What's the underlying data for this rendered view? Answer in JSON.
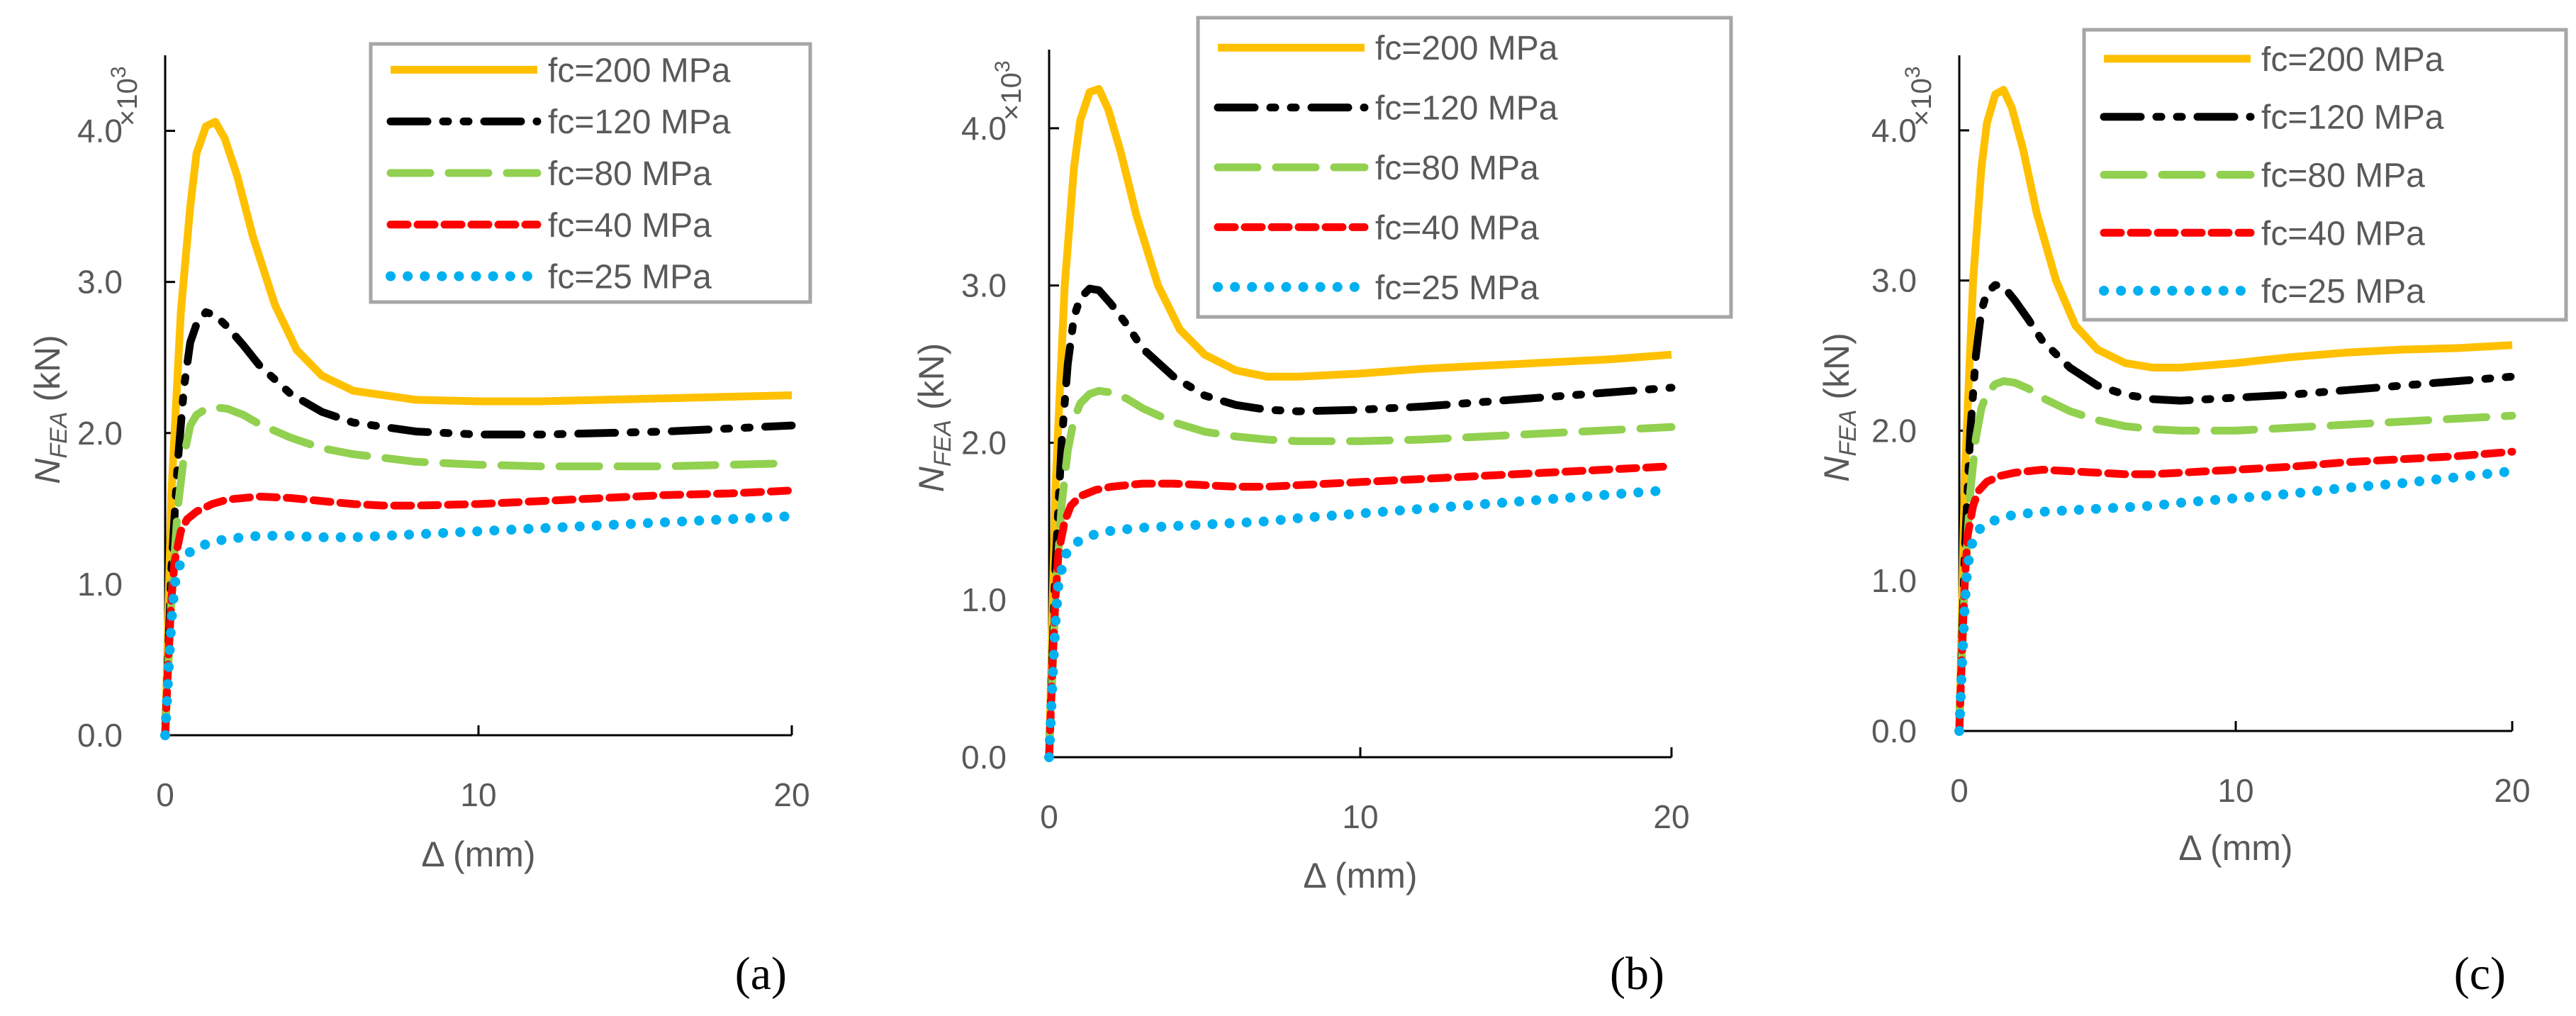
{
  "chart_data": [
    {
      "type": "line",
      "panel_label": "(a)",
      "xlabel": "Δ (mm)",
      "ylabel": "N_FEA (kN)",
      "ylabel_main": "N",
      "ylabel_sub": "FEA",
      "ylabel_unit": " (kN)",
      "y_scale": "×10",
      "y_scale_exp": "3",
      "xlim": [
        0,
        20
      ],
      "ylim": [
        0,
        4.5
      ],
      "x_ticks": [
        "0",
        "10",
        "20"
      ],
      "y_ticks": [
        "0.0",
        "1.0",
        "2.0",
        "3.0",
        "4.0"
      ],
      "legend_position": "top-right",
      "series": [
        {
          "name": "fc=200  MPa",
          "color": "#FFC000",
          "style": "solid",
          "x": [
            0,
            0.2,
            0.5,
            0.8,
            1.0,
            1.3,
            1.6,
            1.9,
            2.3,
            2.8,
            3.5,
            4.2,
            5,
            6,
            8,
            10,
            12,
            14,
            16,
            18,
            20
          ],
          "y": [
            0,
            1.6,
            2.8,
            3.5,
            3.85,
            4.03,
            4.06,
            3.95,
            3.7,
            3.3,
            2.85,
            2.55,
            2.38,
            2.28,
            2.22,
            2.21,
            2.21,
            2.22,
            2.23,
            2.24,
            2.25
          ]
        },
        {
          "name": "fc=120  MPa",
          "color": "#000000",
          "style": "dashdotdot",
          "x": [
            0,
            0.2,
            0.4,
            0.6,
            0.8,
            1.0,
            1.3,
            1.6,
            2.0,
            2.5,
            3,
            4,
            5,
            6,
            8,
            10,
            12,
            14,
            16,
            18,
            20
          ],
          "y": [
            0,
            1.1,
            1.8,
            2.3,
            2.6,
            2.72,
            2.8,
            2.78,
            2.7,
            2.58,
            2.45,
            2.26,
            2.14,
            2.07,
            2.01,
            1.99,
            1.99,
            2.0,
            2.01,
            2.03,
            2.05
          ]
        },
        {
          "name": "fc=80  MPa",
          "color": "#92D050",
          "style": "longdash",
          "x": [
            0,
            0.2,
            0.4,
            0.6,
            0.8,
            1.0,
            1.3,
            1.6,
            2.0,
            2.5,
            3,
            4,
            5,
            6,
            8,
            10,
            12,
            14,
            16,
            18,
            20
          ],
          "y": [
            0,
            0.9,
            1.5,
            1.85,
            2.05,
            2.12,
            2.16,
            2.17,
            2.16,
            2.12,
            2.06,
            1.97,
            1.9,
            1.86,
            1.81,
            1.79,
            1.78,
            1.78,
            1.78,
            1.79,
            1.8
          ]
        },
        {
          "name": "fc=40  MPa",
          "color": "#FF0000",
          "style": "shortdash",
          "x": [
            0,
            0.1,
            0.2,
            0.3,
            0.5,
            0.7,
            1.0,
            1.5,
            2,
            3,
            4,
            5,
            6,
            7,
            8,
            10,
            12,
            14,
            16,
            18,
            20
          ],
          "y": [
            0,
            0.5,
            0.9,
            1.15,
            1.35,
            1.43,
            1.48,
            1.53,
            1.56,
            1.58,
            1.57,
            1.55,
            1.53,
            1.52,
            1.52,
            1.53,
            1.55,
            1.57,
            1.59,
            1.6,
            1.62
          ]
        },
        {
          "name": "fc=25 MPa",
          "color": "#00B0F0",
          "style": "dotted",
          "x": [
            0,
            0.1,
            0.2,
            0.3,
            0.5,
            0.7,
            1.0,
            1.5,
            2,
            3,
            4,
            5,
            6,
            7,
            8,
            10,
            12,
            14,
            16,
            18,
            20
          ],
          "y": [
            0,
            0.4,
            0.75,
            1.0,
            1.15,
            1.2,
            1.24,
            1.28,
            1.3,
            1.32,
            1.32,
            1.31,
            1.31,
            1.32,
            1.33,
            1.35,
            1.37,
            1.39,
            1.41,
            1.43,
            1.45
          ]
        }
      ]
    },
    {
      "type": "line",
      "panel_label": "(b)",
      "xlabel": "Δ (mm)",
      "ylabel": "N_FEA (kN)",
      "ylabel_main": "N",
      "ylabel_sub": "FEA",
      "ylabel_unit": " (kN)",
      "y_scale": "×10",
      "y_scale_exp": "3",
      "xlim": [
        0,
        20
      ],
      "ylim": [
        0,
        4.5
      ],
      "x_ticks": [
        "0",
        "10",
        "20"
      ],
      "y_ticks": [
        "0.0",
        "1.0",
        "2.0",
        "3.0",
        "4.0"
      ],
      "legend_position": "top-right",
      "series": [
        {
          "name": "fc=200  MPa",
          "color": "#FFC000",
          "style": "solid",
          "x": [
            0,
            0.2,
            0.5,
            0.8,
            1.0,
            1.3,
            1.6,
            1.9,
            2.3,
            2.8,
            3.5,
            4.2,
            5,
            6,
            7,
            8,
            10,
            12,
            14,
            16,
            18,
            20
          ],
          "y": [
            0,
            1.7,
            3.0,
            3.75,
            4.05,
            4.23,
            4.25,
            4.12,
            3.85,
            3.45,
            3.0,
            2.72,
            2.56,
            2.46,
            2.42,
            2.42,
            2.44,
            2.47,
            2.49,
            2.51,
            2.53,
            2.56
          ]
        },
        {
          "name": "fc=120  MPa",
          "color": "#000000",
          "style": "dashdotdot",
          "x": [
            0,
            0.2,
            0.4,
            0.6,
            0.8,
            1.0,
            1.3,
            1.6,
            2.0,
            2.5,
            3,
            4,
            5,
            6,
            7,
            8,
            10,
            12,
            14,
            16,
            18,
            20
          ],
          "y": [
            0,
            1.2,
            2.0,
            2.5,
            2.8,
            2.92,
            2.98,
            2.97,
            2.88,
            2.75,
            2.6,
            2.42,
            2.3,
            2.24,
            2.21,
            2.2,
            2.21,
            2.23,
            2.26,
            2.29,
            2.32,
            2.35
          ]
        },
        {
          "name": "fc=80  MPa",
          "color": "#92D050",
          "style": "longdash",
          "x": [
            0,
            0.2,
            0.4,
            0.6,
            0.8,
            1.0,
            1.3,
            1.6,
            2.0,
            2.5,
            3,
            4,
            5,
            6,
            7,
            8,
            10,
            12,
            14,
            16,
            18,
            20
          ],
          "y": [
            0,
            1.0,
            1.6,
            1.95,
            2.15,
            2.25,
            2.31,
            2.33,
            2.32,
            2.28,
            2.22,
            2.13,
            2.07,
            2.04,
            2.02,
            2.01,
            2.01,
            2.02,
            2.04,
            2.06,
            2.08,
            2.1
          ]
        },
        {
          "name": "fc=40  MPa",
          "color": "#FF0000",
          "style": "shortdash",
          "x": [
            0,
            0.1,
            0.2,
            0.3,
            0.5,
            0.7,
            1.0,
            1.5,
            2,
            3,
            4,
            5,
            6,
            7,
            8,
            10,
            12,
            14,
            16,
            18,
            20
          ],
          "y": [
            0,
            0.55,
            1.0,
            1.3,
            1.5,
            1.6,
            1.66,
            1.7,
            1.72,
            1.74,
            1.74,
            1.73,
            1.72,
            1.72,
            1.73,
            1.75,
            1.77,
            1.79,
            1.81,
            1.83,
            1.85
          ]
        },
        {
          "name": "fc=25 MPa",
          "color": "#00B0F0",
          "style": "dotted",
          "x": [
            0,
            0.1,
            0.2,
            0.3,
            0.5,
            0.7,
            1.0,
            1.5,
            2,
            3,
            4,
            5,
            6,
            7,
            8,
            10,
            12,
            14,
            16,
            18,
            20
          ],
          "y": [
            0,
            0.45,
            0.85,
            1.1,
            1.28,
            1.34,
            1.38,
            1.42,
            1.44,
            1.46,
            1.47,
            1.48,
            1.49,
            1.5,
            1.52,
            1.55,
            1.58,
            1.61,
            1.64,
            1.67,
            1.7
          ]
        }
      ]
    },
    {
      "type": "line",
      "panel_label": "(c)",
      "xlabel": "Δ (mm)",
      "ylabel": "N_FEA (kN)",
      "ylabel_main": "N",
      "ylabel_sub": "FEA",
      "ylabel_unit": " (kN)",
      "y_scale": "×10",
      "y_scale_exp": "3",
      "xlim": [
        0,
        20
      ],
      "ylim": [
        0,
        4.5
      ],
      "x_ticks": [
        "0",
        "10",
        "20"
      ],
      "y_ticks": [
        "0.0",
        "1.0",
        "2.0",
        "3.0",
        "4.0"
      ],
      "legend_position": "top-right",
      "series": [
        {
          "name": "fc=200  MPa",
          "color": "#FFC000",
          "style": "solid",
          "x": [
            0,
            0.2,
            0.5,
            0.8,
            1.0,
            1.3,
            1.6,
            1.9,
            2.3,
            2.8,
            3.5,
            4.2,
            5,
            6,
            7,
            8,
            10,
            12,
            14,
            16,
            18,
            20
          ],
          "y": [
            0,
            1.7,
            3.0,
            3.75,
            4.05,
            4.24,
            4.27,
            4.15,
            3.88,
            3.45,
            3.0,
            2.7,
            2.54,
            2.45,
            2.42,
            2.42,
            2.45,
            2.49,
            2.52,
            2.54,
            2.55,
            2.57
          ]
        },
        {
          "name": "fc=120  MPa",
          "color": "#000000",
          "style": "dashdotdot",
          "x": [
            0,
            0.2,
            0.4,
            0.6,
            0.8,
            1.0,
            1.3,
            1.6,
            2.0,
            2.5,
            3,
            4,
            5,
            6,
            7,
            8,
            10,
            12,
            14,
            16,
            18,
            20
          ],
          "y": [
            0,
            1.2,
            2.0,
            2.5,
            2.8,
            2.92,
            2.97,
            2.96,
            2.87,
            2.74,
            2.6,
            2.42,
            2.3,
            2.24,
            2.21,
            2.2,
            2.22,
            2.24,
            2.27,
            2.3,
            2.33,
            2.36
          ]
        },
        {
          "name": "fc=80  MPa",
          "color": "#92D050",
          "style": "longdash",
          "x": [
            0,
            0.2,
            0.4,
            0.6,
            0.8,
            1.0,
            1.3,
            1.6,
            2.0,
            2.5,
            3,
            4,
            5,
            6,
            7,
            8,
            10,
            12,
            14,
            16,
            18,
            20
          ],
          "y": [
            0,
            1.0,
            1.6,
            1.95,
            2.15,
            2.25,
            2.31,
            2.33,
            2.32,
            2.28,
            2.22,
            2.13,
            2.07,
            2.03,
            2.01,
            2.0,
            2.0,
            2.02,
            2.04,
            2.06,
            2.08,
            2.1
          ]
        },
        {
          "name": "fc=40  MPa",
          "color": "#FF0000",
          "style": "shortdash",
          "x": [
            0,
            0.1,
            0.2,
            0.3,
            0.5,
            0.7,
            1.0,
            1.5,
            2,
            3,
            4,
            5,
            6,
            7,
            8,
            10,
            12,
            14,
            16,
            18,
            20
          ],
          "y": [
            0,
            0.55,
            1.0,
            1.3,
            1.5,
            1.6,
            1.66,
            1.7,
            1.72,
            1.74,
            1.73,
            1.72,
            1.71,
            1.71,
            1.72,
            1.74,
            1.76,
            1.79,
            1.81,
            1.83,
            1.86
          ]
        },
        {
          "name": "fc=25 MPa",
          "color": "#00B0F0",
          "style": "dotted",
          "x": [
            0,
            0.1,
            0.2,
            0.3,
            0.5,
            0.7,
            1.0,
            1.5,
            2,
            3,
            4,
            5,
            6,
            7,
            8,
            10,
            12,
            14,
            16,
            18,
            20
          ],
          "y": [
            0,
            0.45,
            0.85,
            1.1,
            1.28,
            1.34,
            1.38,
            1.42,
            1.44,
            1.46,
            1.47,
            1.48,
            1.49,
            1.5,
            1.52,
            1.55,
            1.58,
            1.62,
            1.65,
            1.69,
            1.73
          ]
        }
      ]
    }
  ]
}
